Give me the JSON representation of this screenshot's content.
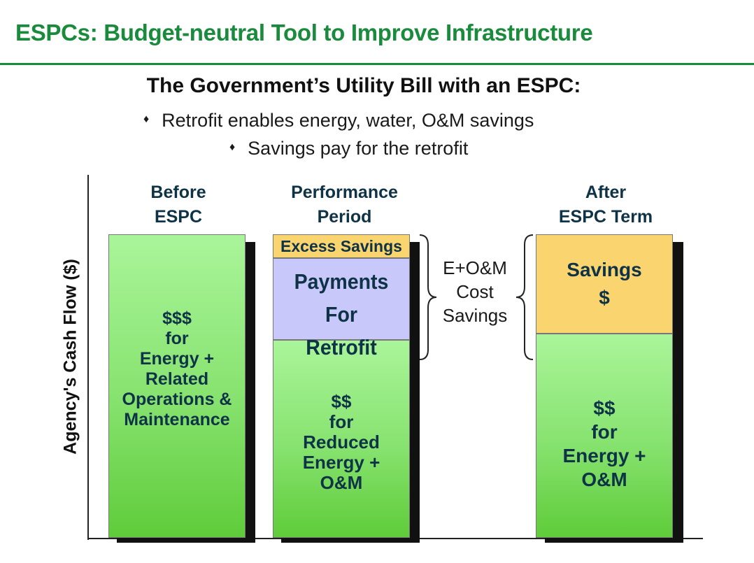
{
  "slide_title": "ESPCs: Budget-neutral Tool  to Improve Infrastructure",
  "subtitle": "The Government’s Utility Bill with an ESPC:",
  "bullets": [
    {
      "icon": "diamond-bullet",
      "text": "Retrofit enables energy, water, O&M savings"
    },
    {
      "icon": "diamond-bullet",
      "text": "Savings pay for the retrofit"
    }
  ],
  "y_axis_label": "Agency's Cash Flow ($)",
  "columns": {
    "before": {
      "header": [
        "Before",
        "ESPC"
      ],
      "segment": [
        "$$$",
        "for",
        "Energy +",
        "Related",
        "Operations &",
        "Maintenance"
      ]
    },
    "performance": {
      "header": [
        "Performance",
        "Period"
      ],
      "excess": "Excess Savings",
      "payments": [
        "Payments",
        "For",
        "Retrofit"
      ],
      "reduced": [
        "$$",
        "for",
        "Reduced",
        "Energy +",
        "O&M"
      ]
    },
    "after": {
      "header": [
        "After",
        "ESPC Term"
      ],
      "savings": [
        "Savings",
        "$"
      ],
      "energy": [
        "$$",
        "for",
        "Energy +",
        "O&M"
      ]
    }
  },
  "brace_label": [
    "E+O&M",
    "Cost",
    "Savings"
  ],
  "colors": {
    "title_green": "#1a8a3c",
    "bar_green": "#86e26e",
    "savings_yellow": "#fad46e",
    "payments_lavender": "#c9c8fa",
    "text_navy": "#0e3346"
  }
}
